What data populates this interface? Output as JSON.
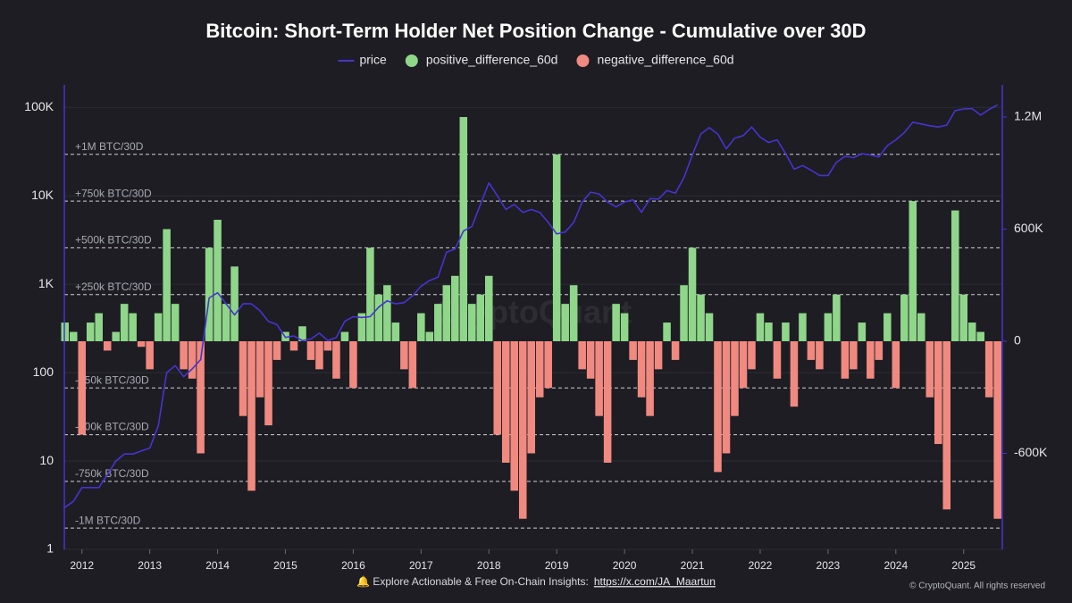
{
  "chart_data": {
    "type": "combo",
    "title": "Bitcoin: Short-Term Holder Net Position Change - Cumulative over 30D",
    "watermark": "CryptoQuant",
    "footer_text": "🔔 Explore Actionable & Free On-Chain Insights:",
    "footer_link": "https://x.com/JA_Maartun",
    "copyright": "© CryptoQuant. All rights reserved",
    "log_y": true,
    "grid": true,
    "legend": "top",
    "xlim": [
      2011.74,
      2025.57
    ],
    "xticks": [
      2012,
      2013,
      2014,
      2015,
      2016,
      2017,
      2018,
      2019,
      2020,
      2021,
      2022,
      2023,
      2024,
      2025
    ],
    "ylim": [
      1,
      180000
    ],
    "yticks": [
      1,
      10,
      100,
      {
        "value": 1000,
        "label": "1K"
      },
      {
        "value": 10000,
        "label": "10K"
      },
      {
        "value": 100000,
        "label": "100K"
      }
    ],
    "y2lim": [
      -1114000,
      1372000
    ],
    "y2ticks": [
      {
        "value": -600000,
        "label": "-600K"
      },
      0,
      {
        "value": 600000,
        "label": "600K"
      },
      {
        "value": 1200000,
        "label": "1.2M"
      }
    ],
    "reference_lines": [
      {
        "value": 1000000,
        "label": "+1M BTC/30D"
      },
      {
        "value": 750000,
        "label": "+750k BTC/30D"
      },
      {
        "value": 500000,
        "label": "+500k BTC/30D"
      },
      {
        "value": 250000,
        "label": "+250k BTC/30D"
      },
      {
        "value": -250000,
        "label": "-250k BTC/30D"
      },
      {
        "value": -500000,
        "label": "-500k BTC/30D"
      },
      {
        "value": -750000,
        "label": "-750k BTC/30D"
      },
      {
        "value": -1000000,
        "label": "-1M BTC/30D"
      }
    ],
    "x": [
      2011.75,
      2011.875,
      2012.0,
      2012.125,
      2012.25,
      2012.375,
      2012.5,
      2012.625,
      2012.75,
      2012.875,
      2013.0,
      2013.125,
      2013.25,
      2013.375,
      2013.5,
      2013.625,
      2013.75,
      2013.875,
      2014.0,
      2014.125,
      2014.25,
      2014.375,
      2014.5,
      2014.625,
      2014.75,
      2014.875,
      2015.0,
      2015.125,
      2015.25,
      2015.375,
      2015.5,
      2015.625,
      2015.75,
      2015.875,
      2016.0,
      2016.125,
      2016.25,
      2016.375,
      2016.5,
      2016.625,
      2016.75,
      2016.875,
      2017.0,
      2017.125,
      2017.25,
      2017.375,
      2017.5,
      2017.625,
      2017.75,
      2017.875,
      2018.0,
      2018.125,
      2018.25,
      2018.375,
      2018.5,
      2018.625,
      2018.75,
      2018.875,
      2019.0,
      2019.125,
      2019.25,
      2019.375,
      2019.5,
      2019.625,
      2019.75,
      2019.875,
      2020.0,
      2020.125,
      2020.25,
      2020.375,
      2020.5,
      2020.625,
      2020.75,
      2020.875,
      2021.0,
      2021.125,
      2021.25,
      2021.375,
      2021.5,
      2021.625,
      2021.75,
      2021.875,
      2022.0,
      2022.125,
      2022.25,
      2022.375,
      2022.5,
      2022.625,
      2022.75,
      2022.875,
      2023.0,
      2023.125,
      2023.25,
      2023.375,
      2023.5,
      2023.625,
      2023.75,
      2023.875,
      2024.0,
      2024.125,
      2024.25,
      2024.375,
      2024.5,
      2024.625,
      2024.75,
      2024.875,
      2025.0,
      2025.125,
      2025.25,
      2025.375,
      2025.5
    ],
    "series": [
      {
        "name": "price",
        "type": "line",
        "axis": "y",
        "color": "#4634d0",
        "values": [
          3,
          3.5,
          5,
          5,
          5,
          7,
          10,
          12,
          12,
          13,
          14,
          25,
          100,
          120,
          90,
          110,
          140,
          700,
          800,
          600,
          450,
          600,
          600,
          500,
          380,
          350,
          250,
          260,
          230,
          240,
          280,
          230,
          250,
          380,
          430,
          420,
          430,
          550,
          650,
          600,
          620,
          740,
          950,
          1100,
          1200,
          2300,
          2500,
          4000,
          4500,
          8000,
          14000,
          10000,
          7000,
          8000,
          6500,
          7000,
          6500,
          5000,
          3700,
          3900,
          5000,
          8500,
          11000,
          10500,
          8500,
          7500,
          8500,
          9000,
          6500,
          9300,
          9200,
          11500,
          10700,
          16000,
          29000,
          50000,
          59000,
          50000,
          34000,
          45000,
          48000,
          60000,
          46000,
          40000,
          43000,
          30000,
          20000,
          22000,
          19500,
          17000,
          17000,
          24000,
          28000,
          27000,
          30000,
          29000,
          27500,
          37000,
          43000,
          52000,
          68000,
          65000,
          62000,
          60000,
          63000,
          92000,
          96000,
          97000,
          82000,
          95000,
          107000
        ]
      },
      {
        "name": "positive_difference_60d",
        "type": "bar",
        "axis": "y2",
        "color": "#8fd68a",
        "values": [
          100000,
          50000,
          null,
          100000,
          150000,
          null,
          50000,
          200000,
          150000,
          null,
          null,
          150000,
          600000,
          200000,
          null,
          null,
          null,
          500000,
          650000,
          200000,
          400000,
          null,
          null,
          null,
          null,
          null,
          50000,
          null,
          80000,
          null,
          null,
          null,
          null,
          50000,
          null,
          150000,
          500000,
          250000,
          300000,
          100000,
          null,
          null,
          150000,
          50000,
          200000,
          300000,
          350000,
          1200000,
          200000,
          250000,
          350000,
          null,
          null,
          null,
          null,
          null,
          null,
          null,
          1000000,
          200000,
          300000,
          null,
          null,
          null,
          null,
          200000,
          150000,
          null,
          null,
          null,
          null,
          100000,
          null,
          300000,
          500000,
          250000,
          150000,
          null,
          null,
          null,
          null,
          null,
          150000,
          100000,
          null,
          100000,
          null,
          150000,
          null,
          null,
          150000,
          250000,
          null,
          null,
          100000,
          null,
          null,
          150000,
          null,
          250000,
          750000,
          150000,
          null,
          null,
          null,
          700000,
          250000,
          100000,
          50000,
          null,
          null
        ]
      },
      {
        "name": "negative_difference_60d",
        "type": "bar",
        "axis": "y2",
        "color": "#f08a80",
        "values": [
          null,
          null,
          -500000,
          null,
          null,
          -50000,
          null,
          null,
          null,
          -30000,
          -150000,
          null,
          null,
          null,
          -150000,
          -200000,
          -600000,
          null,
          null,
          null,
          null,
          -400000,
          -800000,
          -300000,
          -450000,
          -100000,
          null,
          -50000,
          null,
          -100000,
          -150000,
          -50000,
          -200000,
          null,
          -250000,
          null,
          null,
          null,
          null,
          null,
          -150000,
          -250000,
          null,
          null,
          null,
          null,
          null,
          null,
          null,
          null,
          null,
          -500000,
          -650000,
          -800000,
          -950000,
          -600000,
          -300000,
          -250000,
          null,
          null,
          null,
          -150000,
          -200000,
          -400000,
          -650000,
          null,
          null,
          -100000,
          -300000,
          -400000,
          -150000,
          null,
          -100000,
          null,
          null,
          null,
          null,
          -700000,
          -600000,
          -400000,
          -250000,
          -150000,
          null,
          null,
          -200000,
          null,
          -350000,
          null,
          -100000,
          -150000,
          null,
          null,
          -200000,
          -150000,
          null,
          -200000,
          -100000,
          null,
          -250000,
          null,
          null,
          null,
          -300000,
          -550000,
          -900000,
          null,
          null,
          null,
          null,
          -300000,
          -950000
        ]
      }
    ]
  }
}
